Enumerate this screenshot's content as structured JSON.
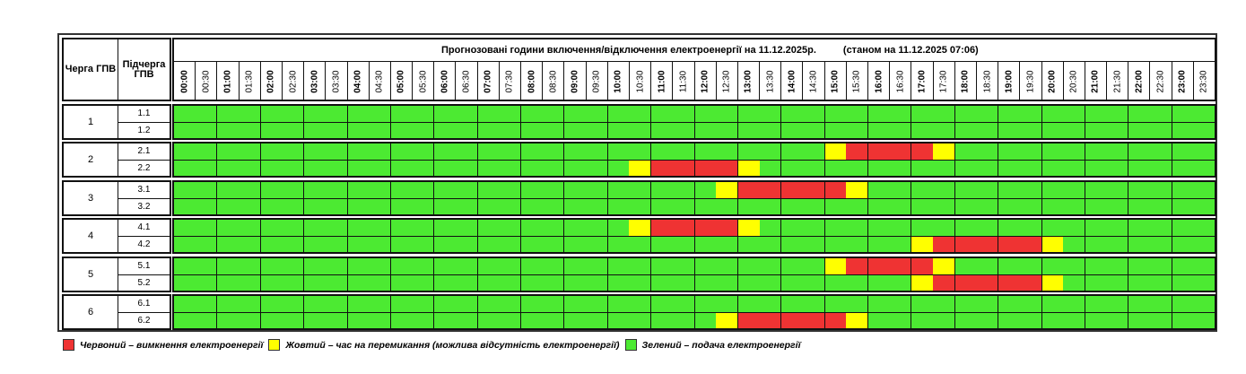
{
  "header": {
    "queue_label": "Черга ГПВ",
    "subqueue_label": "Підчерга ГПВ",
    "title": "Прогнозовані години включення/відключення електроенергії на 11.12.2025р.",
    "as_of": "(станом на 11.12.2025 07:06)",
    "times": [
      "00:00",
      "00:30",
      "01:00",
      "01:30",
      "02:00",
      "02:30",
      "03:00",
      "03:30",
      "04:00",
      "04:30",
      "05:00",
      "05:30",
      "06:00",
      "06:30",
      "07:00",
      "07:30",
      "08:00",
      "08:30",
      "09:00",
      "09:30",
      "10:00",
      "10:30",
      "11:00",
      "11:30",
      "12:00",
      "12:30",
      "13:00",
      "13:30",
      "14:00",
      "14:30",
      "15:00",
      "15:30",
      "16:00",
      "16:30",
      "17:00",
      "17:30",
      "18:00",
      "18:30",
      "19:00",
      "19:30",
      "20:00",
      "20:30",
      "21:00",
      "21:30",
      "22:00",
      "22:30",
      "23:00",
      "23:30"
    ]
  },
  "colors": {
    "G": "#4cea32",
    "Y": "#ffff00",
    "R": "#ef3333"
  },
  "groups": [
    {
      "queue": "1",
      "subs": [
        {
          "label": "1.1",
          "slots": "GGGGGGGGGGGGGGGGGGGGGGGGGGGGGGGGGGGGGGGGGGGGGGGG"
        },
        {
          "label": "1.2",
          "slots": "GGGGGGGGGGGGGGGGGGGGGGGGGGGGGGGGGGGGGGGGGGGGGGGG"
        }
      ]
    },
    {
      "queue": "2",
      "subs": [
        {
          "label": "2.1",
          "slots": "GGGGGGGGGGGGGGGGGGGGGGGGGGGGGGYRRRRYGGGGGGGGGGGG"
        },
        {
          "label": "2.2",
          "slots": "GGGGGGGGGGGGGGGGGGGGGYRRRRYGGGGGGGGGGGGGGGGGGGGG"
        }
      ]
    },
    {
      "queue": "3",
      "subs": [
        {
          "label": "3.1",
          "slots": "GGGGGGGGGGGGGGGGGGGGGGGGGYRRRRRYGGGGGGGGGGGGGGGG"
        },
        {
          "label": "3.2",
          "slots": "GGGGGGGGGGGGGGGGGGGGGGGGGGGGGGGGGGGGGGGGGGGGGGGG"
        }
      ]
    },
    {
      "queue": "4",
      "subs": [
        {
          "label": "4.1",
          "slots": "GGGGGGGGGGGGGGGGGGGGGYRRRRYGGGGGGGGGGGGGGGGGGGGG"
        },
        {
          "label": "4.2",
          "slots": "GGGGGGGGGGGGGGGGGGGGGGGGGGGGGGGGGGYRRRRRYGGGGGGG"
        }
      ]
    },
    {
      "queue": "5",
      "subs": [
        {
          "label": "5.1",
          "slots": "GGGGGGGGGGGGGGGGGGGGGGGGGGGGGGYRRRRYGGGGGGGGGGGG"
        },
        {
          "label": "5.2",
          "slots": "GGGGGGGGGGGGGGGGGGGGGGGGGGGGGGGGGGYRRRRRYGGGGGGG"
        }
      ]
    },
    {
      "queue": "6",
      "subs": [
        {
          "label": "6.1",
          "slots": "GGGGGGGGGGGGGGGGGGGGGGGGGGGGGGGGGGGGGGGGGGGGGGGG"
        },
        {
          "label": "6.2",
          "slots": "GGGGGGGGGGGGGGGGGGGGGGGGGYRRRRRYGGGGGGGGGGGGGGGG"
        }
      ]
    }
  ],
  "legend": [
    {
      "key": "R",
      "text": "Червоний – вимкнення електроенергії"
    },
    {
      "key": "Y",
      "text": "Жовтий – час на перемикання (можлива відсутність електроенергії)"
    },
    {
      "key": "G",
      "text": "Зелений – подача електроенергії"
    }
  ]
}
